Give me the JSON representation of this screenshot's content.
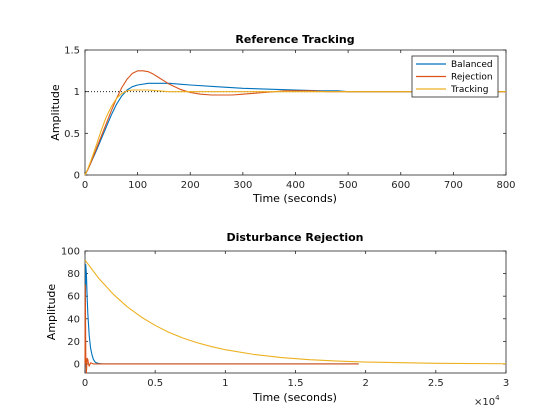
{
  "colors": {
    "Balanced": "#0072bd",
    "Rejection": "#d95319",
    "Tracking": "#edb120",
    "axis": "#262626",
    "reference_line": "#000000"
  },
  "chart_data": [
    {
      "id": "top",
      "type": "line",
      "title": "Reference Tracking",
      "xlabel": "Time (seconds)",
      "ylabel": "Amplitude",
      "xlim": [
        0,
        800
      ],
      "ylim": [
        0,
        1.5
      ],
      "xticks": [
        0,
        100,
        200,
        300,
        400,
        500,
        600,
        700,
        800
      ],
      "yticks": [
        0,
        0.5,
        1,
        1.5
      ],
      "xtick_labels": [
        "0",
        "100",
        "200",
        "300",
        "400",
        "500",
        "600",
        "700",
        "800"
      ],
      "ytick_labels": [
        "0",
        "0.5",
        "1",
        "1.5"
      ],
      "grid": false,
      "legend": "top-right",
      "legend_entries": [
        "Balanced",
        "Rejection",
        "Tracking"
      ],
      "reference_line": {
        "y": 1,
        "x_range": [
          0,
          480
        ],
        "style": "dotted"
      },
      "series": [
        {
          "name": "Balanced",
          "x": [
            0,
            5,
            10,
            20,
            30,
            40,
            50,
            60,
            70,
            80,
            90,
            100,
            120,
            140,
            160,
            180,
            200,
            250,
            300,
            350,
            400,
            450,
            480,
            500,
            800
          ],
          "y": [
            0,
            0.06,
            0.13,
            0.27,
            0.42,
            0.57,
            0.72,
            0.85,
            0.95,
            1.02,
            1.06,
            1.08,
            1.1,
            1.1,
            1.1,
            1.09,
            1.08,
            1.06,
            1.04,
            1.03,
            1.02,
            1.01,
            1.01,
            1.0,
            1.0
          ]
        },
        {
          "name": "Rejection",
          "x": [
            0,
            5,
            10,
            20,
            30,
            40,
            50,
            60,
            70,
            80,
            90,
            100,
            110,
            120,
            130,
            140,
            150,
            160,
            180,
            200,
            220,
            240,
            260,
            280,
            300,
            320,
            340,
            360,
            380,
            400,
            430,
            460,
            500,
            600,
            800
          ],
          "y": [
            0,
            0.06,
            0.13,
            0.29,
            0.45,
            0.61,
            0.77,
            0.92,
            1.05,
            1.15,
            1.22,
            1.25,
            1.25,
            1.24,
            1.21,
            1.17,
            1.13,
            1.09,
            1.03,
            0.99,
            0.97,
            0.96,
            0.96,
            0.96,
            0.97,
            0.98,
            0.99,
            1.0,
            1.01,
            1.01,
            1.01,
            1.0,
            1.0,
            1.0,
            1.0
          ]
        },
        {
          "name": "Tracking",
          "x": [
            0,
            5,
            10,
            20,
            30,
            40,
            50,
            60,
            70,
            80,
            90,
            100,
            120,
            140,
            160,
            200,
            300,
            400,
            500,
            800
          ],
          "y": [
            0,
            0.07,
            0.15,
            0.33,
            0.52,
            0.69,
            0.82,
            0.92,
            0.98,
            1.01,
            1.02,
            1.02,
            1.02,
            1.01,
            1.0,
            1.0,
            1.0,
            1.0,
            1.0,
            1.0
          ]
        }
      ]
    },
    {
      "id": "bottom",
      "type": "line",
      "title": "Disturbance Rejection",
      "xlabel": "Time (seconds)",
      "ylabel": "Amplitude",
      "x_exponent": "×10",
      "x_exponent_power": "4",
      "xlim": [
        0,
        3
      ],
      "ylim": [
        -8,
        100
      ],
      "xticks": [
        0,
        0.5,
        1,
        1.5,
        2,
        2.5,
        3
      ],
      "yticks": [
        0,
        20,
        40,
        60,
        80,
        100
      ],
      "xtick_labels": [
        "0",
        "0.5",
        "1",
        "1.5",
        "2",
        "2.5",
        "3"
      ],
      "ytick_labels": [
        "0",
        "20",
        "40",
        "60",
        "80",
        "100"
      ],
      "grid": false,
      "series": [
        {
          "name": "Balanced",
          "x": [
            0,
            0.005,
            0.01,
            0.015,
            0.02,
            0.03,
            0.04,
            0.05,
            0.06,
            0.07,
            0.08,
            0.1,
            0.12,
            0.15,
            0.2,
            0.5,
            1.95
          ],
          "y": [
            0,
            88,
            80,
            60,
            45,
            25,
            14,
            8,
            4,
            2,
            1,
            0.4,
            0.1,
            0,
            0,
            0,
            0
          ]
        },
        {
          "name": "Rejection",
          "x": [
            0,
            0.002,
            0.004,
            0.006,
            0.01,
            0.015,
            0.02,
            0.025,
            0.03,
            0.04,
            0.05,
            0.06,
            0.08,
            0.1,
            0.2,
            0.5,
            1.0,
            1.95
          ],
          "y": [
            0,
            70,
            35,
            5,
            -8,
            5,
            4,
            0,
            -2,
            1,
            0.5,
            0,
            0,
            0,
            0,
            0,
            0,
            0
          ]
        },
        {
          "name": "Tracking",
          "x": [
            0,
            0.1,
            0.2,
            0.3,
            0.4,
            0.5,
            0.6,
            0.7,
            0.8,
            0.9,
            1.0,
            1.2,
            1.4,
            1.6,
            1.8,
            2.0,
            2.5,
            3.0
          ],
          "y": [
            92,
            75.5,
            61.9,
            50.7,
            41.6,
            34.1,
            27.9,
            22.9,
            18.8,
            15.4,
            12.6,
            8.5,
            5.7,
            3.8,
            2.6,
            1.7,
            0.6,
            0.2
          ]
        }
      ]
    }
  ]
}
